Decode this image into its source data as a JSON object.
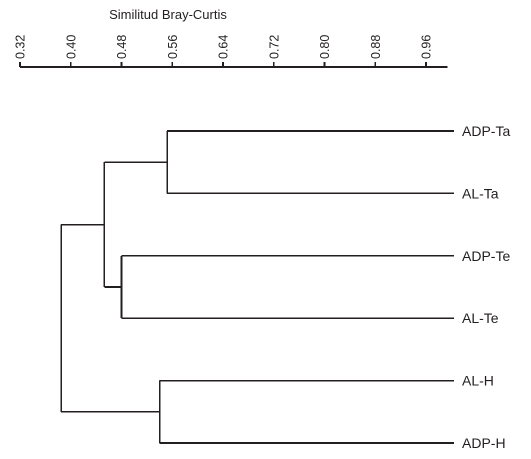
{
  "chart_data": {
    "type": "dendrogram",
    "title": "",
    "xlabel": "Similitud Bray-Curtis",
    "xlim": [
      0.32,
      1.0
    ],
    "ticks": [
      "0.32",
      "0.40",
      "0.48",
      "0.56",
      "0.64",
      "0.72",
      "0.80",
      "0.88",
      "0.96"
    ],
    "tick_values": [
      0.32,
      0.4,
      0.48,
      0.56,
      0.64,
      0.72,
      0.8,
      0.88,
      0.96
    ],
    "leaves": [
      "ADP-Ta",
      "AL-Ta",
      "ADP-Te",
      "AL-Te",
      "AL-H",
      "ADP-H"
    ],
    "merges": [
      {
        "id": "m1",
        "left": "ADP-Ta",
        "right": "AL-Ta",
        "similarity": 0.552
      },
      {
        "id": "m2",
        "left": "ADP-Te",
        "right": "AL-Te",
        "similarity": 0.48
      },
      {
        "id": "m3",
        "left": "m1",
        "right": "m2",
        "similarity": 0.453
      },
      {
        "id": "m4",
        "left": "AL-H",
        "right": "ADP-H",
        "similarity": 0.54
      },
      {
        "id": "m5",
        "left": "m3",
        "right": "m4",
        "similarity": 0.385
      }
    ]
  },
  "colors": {
    "line": "#231f20",
    "background": "#ffffff"
  }
}
